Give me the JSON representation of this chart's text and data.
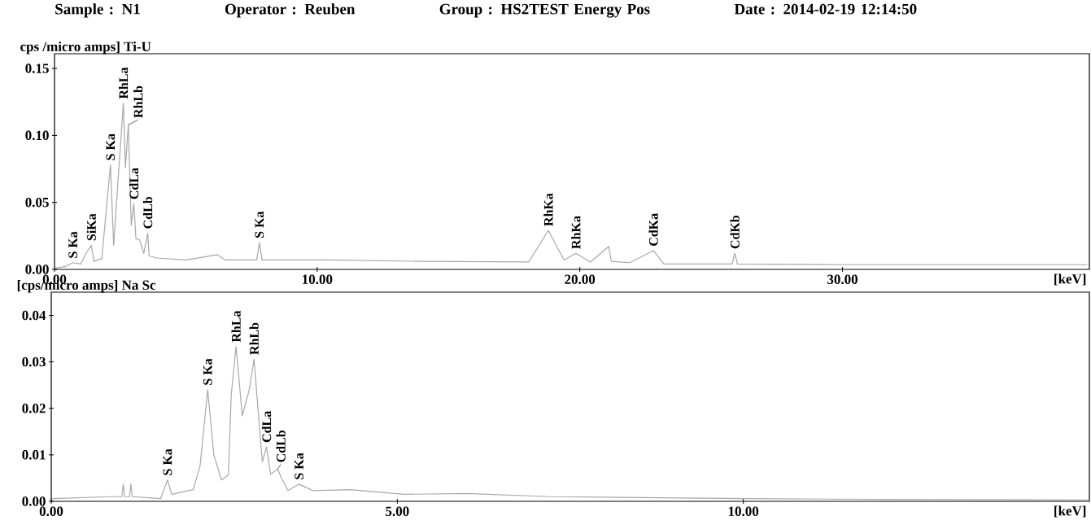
{
  "chart_data": [
    {
      "type": "line",
      "ylabel": "cps /micro amps]  Ti-U",
      "xlabel": "[keV]",
      "xlim": [
        0,
        39.4
      ],
      "ylim": [
        0,
        0.161
      ],
      "xticks": [
        {
          "value": 0,
          "label": "0.00"
        },
        {
          "value": 10,
          "label": "10.00"
        },
        {
          "value": 20,
          "label": "20.00"
        },
        {
          "value": 30,
          "label": "30.00"
        }
      ],
      "yticks": [
        {
          "value": 0,
          "label": "0.00"
        },
        {
          "value": 0.05,
          "label": "0.05"
        },
        {
          "value": 0.1,
          "label": "0.10"
        },
        {
          "value": 0.15,
          "label": "0.15"
        }
      ],
      "series": [
        {
          "color": "#a8a8a8",
          "x": [
            0,
            0.4,
            0.7,
            1.0,
            1.2,
            1.4,
            1.5,
            1.8,
            1.95,
            2.13,
            2.25,
            2.45,
            2.62,
            2.7,
            2.81,
            2.92,
            3.02,
            3.1,
            3.24,
            3.4,
            3.55,
            3.6,
            3.9,
            5.0,
            6.2,
            6.5,
            7.7,
            7.8,
            7.9,
            10.3,
            14.0,
            18.05,
            18.8,
            19.4,
            19.85,
            20.4,
            21.1,
            21.2,
            21.9,
            22.8,
            23.2,
            25.8,
            25.9,
            26.0,
            30.0,
            39.3
          ],
          "values": [
            0.001,
            0.002,
            0.005,
            0.004,
            0.012,
            0.018,
            0.006,
            0.008,
            0.04,
            0.078,
            0.018,
            0.075,
            0.124,
            0.076,
            0.108,
            0.033,
            0.049,
            0.023,
            0.022,
            0.012,
            0.027,
            0.01,
            0.0085,
            0.007,
            0.011,
            0.007,
            0.007,
            0.02,
            0.007,
            0.007,
            0.006,
            0.0055,
            0.029,
            0.007,
            0.012,
            0.0055,
            0.017,
            0.006,
            0.005,
            0.014,
            0.004,
            0.004,
            0.012,
            0.004,
            0.0035,
            0.0035
          ]
        }
      ],
      "annotations": [
        "Sample : N1",
        "Operator : Reuben",
        "Group : HS2TEST  Energy Pos",
        "Date : 2014-02-19 12:14:50",
        {
          "text": "S Ka",
          "x": 0.7,
          "y": 0.005
        },
        {
          "text": "SiKa",
          "x": 1.4,
          "y": 0.018
        },
        {
          "text": "S Ka",
          "x": 2.13,
          "y": 0.078
        },
        {
          "text": "RhLa",
          "x": 2.62,
          "y": 0.124
        },
        {
          "text": "RhLb",
          "x": 2.81,
          "y": 0.108
        },
        {
          "text": "CdLa",
          "x": 3.02,
          "y": 0.049
        },
        {
          "text": "CdLb",
          "x": 3.55,
          "y": 0.027
        },
        {
          "text": "S Ka",
          "x": 7.8,
          "y": 0.02
        },
        {
          "text": "RhKa",
          "x": 18.8,
          "y": 0.029
        },
        {
          "text": "RhKa",
          "x": 19.85,
          "y": 0.012
        },
        {
          "text": "CdKa",
          "x": 22.8,
          "y": 0.014
        },
        {
          "text": "CdKb",
          "x": 25.9,
          "y": 0.012
        }
      ]
    },
    {
      "type": "line",
      "ylabel": "[cps/micro amps] Na Sc",
      "xlabel": "[keV]",
      "xlim": [
        0,
        15
      ],
      "ylim": [
        0,
        0.045
      ],
      "xticks": [
        {
          "value": 0,
          "label": "0.00"
        },
        {
          "value": 5,
          "label": "5.00"
        },
        {
          "value": 10,
          "label": "10.00"
        }
      ],
      "yticks": [
        {
          "value": 0,
          "label": "0.00"
        },
        {
          "value": 0.01,
          "label": "0.01"
        },
        {
          "value": 0.02,
          "label": "0.02"
        },
        {
          "value": 0.03,
          "label": "0.03"
        },
        {
          "value": 0.04,
          "label": "0.04"
        }
      ],
      "series": [
        {
          "color": "#a8a8a8",
          "x": [
            0.02,
            0.88,
            1.02,
            1.04,
            1.06,
            1.13,
            1.15,
            1.17,
            1.58,
            1.68,
            1.74,
            2.05,
            2.15,
            2.26,
            2.35,
            2.46,
            2.56,
            2.6,
            2.67,
            2.76,
            2.86,
            2.93,
            2.99,
            3.05,
            3.11,
            3.17,
            3.27,
            3.32,
            3.42,
            3.58,
            3.78,
            4.32,
            5.1,
            6.0,
            7.2,
            8.0,
            10.0,
            12.0,
            15.0
          ],
          "values": [
            0.0006,
            0.001,
            0.001,
            0.0037,
            0.001,
            0.001,
            0.0037,
            0.001,
            0.0006,
            0.0046,
            0.0015,
            0.0025,
            0.0076,
            0.024,
            0.0099,
            0.0046,
            0.0057,
            0.0229,
            0.0333,
            0.0184,
            0.024,
            0.0306,
            0.0193,
            0.0085,
            0.0117,
            0.0058,
            0.0069,
            0.0052,
            0.0023,
            0.0037,
            0.0023,
            0.0025,
            0.0015,
            0.0017,
            0.001,
            0.0009,
            0.0006,
            0.0004,
            0.0003
          ]
        }
      ],
      "annotations": [
        {
          "text": "S Ka",
          "x": 1.68,
          "y": 0.0046
        },
        {
          "text": "S Ka",
          "x": 2.26,
          "y": 0.024
        },
        {
          "text": "RhLa",
          "x": 2.67,
          "y": 0.0333
        },
        {
          "text": "RhLb",
          "x": 2.93,
          "y": 0.0306
        },
        {
          "text": "CdLa",
          "x": 3.11,
          "y": 0.0117
        },
        {
          "text": "CdLb",
          "x": 3.27,
          "y": 0.0069
        },
        {
          "text": "S Ka",
          "x": 3.58,
          "y": 0.0037
        }
      ]
    }
  ]
}
